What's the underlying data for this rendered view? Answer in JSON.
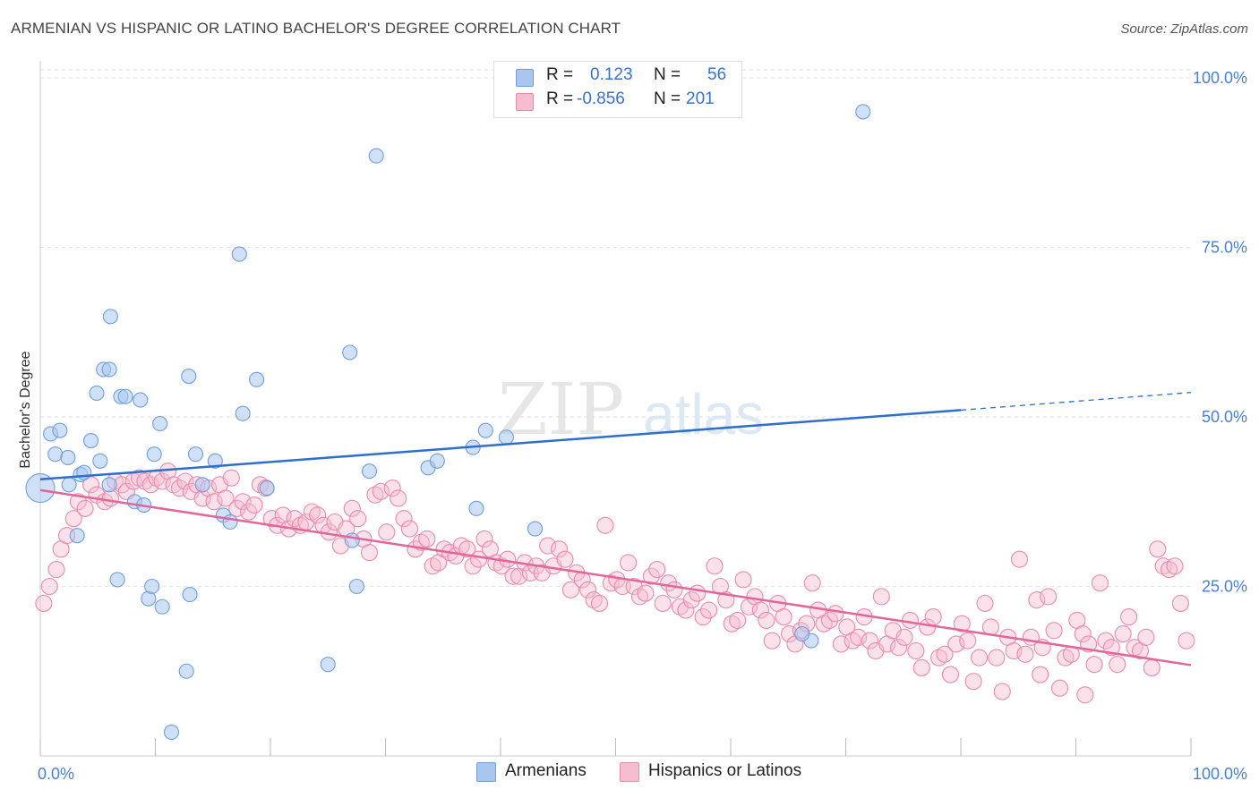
{
  "title": "ARMENIAN VS HISPANIC OR LATINO BACHELOR'S DEGREE CORRELATION CHART",
  "source": "Source: ZipAtlas.com",
  "watermark": "ZIPatlas",
  "legend": {
    "rows": [
      {
        "r_label": "R =",
        "r_value": "0.123",
        "n_label": "N =",
        "n_value": "56"
      },
      {
        "r_label": "R =",
        "r_value": "-0.856",
        "n_label": "N =",
        "n_value": "201"
      }
    ]
  },
  "bottom_legend": [
    "Armenians",
    "Hispanics or Latinos"
  ],
  "colors": {
    "armenian_fill": "#a9c6ee",
    "armenian_stroke": "#6e9fdc",
    "armenian_line": "#2f6fcc",
    "hispanic_fill": "#f6bcd0",
    "hispanic_stroke": "#e98aac",
    "hispanic_line": "#e0679a",
    "axis_text": "#4a7fd0"
  },
  "chart_data": {
    "type": "scatter",
    "xlabel": "",
    "ylabel": "Bachelor's Degree",
    "xlim": [
      0,
      100
    ],
    "ylim": [
      0,
      100
    ],
    "x_tick_labels": [
      "0.0%",
      "100.0%"
    ],
    "y_tick_labels": [
      "25.0%",
      "50.0%",
      "75.0%",
      "100.0%"
    ],
    "y_ticks": [
      25,
      50,
      75,
      100
    ],
    "grid": true,
    "legend_position": "top-center",
    "series": [
      {
        "name": "Armenians",
        "r": 0.123,
        "n": 56,
        "trend": {
          "x0": 0,
          "y0": 40.8,
          "x1": 80,
          "y1": 51.0,
          "dashed_to_x": 100,
          "dashed_to_y": 53.6
        },
        "points": [
          [
            0.0,
            39.5
          ],
          [
            0.9,
            47.5
          ],
          [
            1.3,
            44.5
          ],
          [
            1.7,
            48.0
          ],
          [
            2.4,
            44.0
          ],
          [
            2.5,
            40.0
          ],
          [
            3.5,
            41.5
          ],
          [
            3.2,
            32.5
          ],
          [
            3.8,
            41.8
          ],
          [
            4.4,
            46.5
          ],
          [
            4.9,
            53.5
          ],
          [
            5.2,
            43.5
          ],
          [
            5.5,
            57.0
          ],
          [
            6.0,
            40.0
          ],
          [
            6.0,
            57.0
          ],
          [
            6.1,
            64.8
          ],
          [
            6.7,
            26.0
          ],
          [
            7.0,
            53.0
          ],
          [
            7.4,
            53.0
          ],
          [
            8.2,
            37.5
          ],
          [
            8.7,
            52.5
          ],
          [
            9.0,
            37.0
          ],
          [
            9.4,
            23.2
          ],
          [
            9.7,
            25.0
          ],
          [
            9.9,
            44.5
          ],
          [
            10.4,
            49.0
          ],
          [
            10.6,
            22.0
          ],
          [
            11.4,
            3.5
          ],
          [
            12.7,
            12.5
          ],
          [
            12.9,
            56.0
          ],
          [
            13.0,
            23.8
          ],
          [
            13.5,
            44.5
          ],
          [
            14.1,
            40.0
          ],
          [
            15.9,
            35.5
          ],
          [
            16.5,
            34.5
          ],
          [
            17.3,
            74.0
          ],
          [
            17.6,
            50.5
          ],
          [
            18.8,
            55.5
          ],
          [
            19.7,
            39.5
          ],
          [
            25.0,
            13.5
          ],
          [
            26.9,
            59.5
          ],
          [
            27.1,
            31.8
          ],
          [
            27.5,
            25.0
          ],
          [
            28.6,
            42.0
          ],
          [
            29.2,
            88.5
          ],
          [
            33.7,
            42.5
          ],
          [
            34.5,
            43.5
          ],
          [
            37.6,
            45.5
          ],
          [
            37.9,
            36.5
          ],
          [
            38.7,
            48.0
          ],
          [
            40.5,
            47.0
          ],
          [
            43.0,
            33.5
          ],
          [
            71.5,
            95.0
          ],
          [
            67.0,
            17.0
          ],
          [
            66.2,
            18.0
          ],
          [
            15.2,
            43.5
          ]
        ]
      },
      {
        "name": "Hispanics or Latinos",
        "r": -0.856,
        "n": 201,
        "trend": {
          "x0": 0,
          "y0": 39.2,
          "x1": 100,
          "y1": 13.4
        },
        "points": [
          [
            0.3,
            22.5
          ],
          [
            0.8,
            25.0
          ],
          [
            1.4,
            27.5
          ],
          [
            1.8,
            30.5
          ],
          [
            2.3,
            32.5
          ],
          [
            2.9,
            35.0
          ],
          [
            3.3,
            37.5
          ],
          [
            3.9,
            36.5
          ],
          [
            4.4,
            40.0
          ],
          [
            4.9,
            38.5
          ],
          [
            5.6,
            37.5
          ],
          [
            6.1,
            38.0
          ],
          [
            6.5,
            40.5
          ],
          [
            7.1,
            40.0
          ],
          [
            7.5,
            39.0
          ],
          [
            8.1,
            40.5
          ],
          [
            8.6,
            41.0
          ],
          [
            9.1,
            40.5
          ],
          [
            9.6,
            40.0
          ],
          [
            10.1,
            41.0
          ],
          [
            10.6,
            40.5
          ],
          [
            11.1,
            42.0
          ],
          [
            11.6,
            40.0
          ],
          [
            12.1,
            39.5
          ],
          [
            12.6,
            40.5
          ],
          [
            13.1,
            39.0
          ],
          [
            13.6,
            40.0
          ],
          [
            14.1,
            38.0
          ],
          [
            14.6,
            39.5
          ],
          [
            15.1,
            37.5
          ],
          [
            15.6,
            40.0
          ],
          [
            16.1,
            38.0
          ],
          [
            16.6,
            41.0
          ],
          [
            17.1,
            36.5
          ],
          [
            17.6,
            37.5
          ],
          [
            18.1,
            36.0
          ],
          [
            18.6,
            37.0
          ],
          [
            19.1,
            40.0
          ],
          [
            19.6,
            39.5
          ],
          [
            20.1,
            35.0
          ],
          [
            20.6,
            34.0
          ],
          [
            21.1,
            35.5
          ],
          [
            21.6,
            33.5
          ],
          [
            22.1,
            35.0
          ],
          [
            22.6,
            34.0
          ],
          [
            23.1,
            34.5
          ],
          [
            23.6,
            36.0
          ],
          [
            24.1,
            35.5
          ],
          [
            24.6,
            34.0
          ],
          [
            25.1,
            33.0
          ],
          [
            25.6,
            34.5
          ],
          [
            26.1,
            31.0
          ],
          [
            26.6,
            33.5
          ],
          [
            27.1,
            36.5
          ],
          [
            27.6,
            35.0
          ],
          [
            28.1,
            32.0
          ],
          [
            28.6,
            30.0
          ],
          [
            29.1,
            38.5
          ],
          [
            29.6,
            39.0
          ],
          [
            30.1,
            33.0
          ],
          [
            30.6,
            39.5
          ],
          [
            31.1,
            38.0
          ],
          [
            31.6,
            35.0
          ],
          [
            32.1,
            33.5
          ],
          [
            32.6,
            30.5
          ],
          [
            33.1,
            31.5
          ],
          [
            33.6,
            32.0
          ],
          [
            34.1,
            28.0
          ],
          [
            34.6,
            28.5
          ],
          [
            35.1,
            30.5
          ],
          [
            35.6,
            30.0
          ],
          [
            36.1,
            29.5
          ],
          [
            36.6,
            31.0
          ],
          [
            37.1,
            30.5
          ],
          [
            37.6,
            28.0
          ],
          [
            38.1,
            29.0
          ],
          [
            38.6,
            32.0
          ],
          [
            39.1,
            30.5
          ],
          [
            39.6,
            28.5
          ],
          [
            40.1,
            28.0
          ],
          [
            40.6,
            29.0
          ],
          [
            41.1,
            26.5
          ],
          [
            41.6,
            26.5
          ],
          [
            42.1,
            28.5
          ],
          [
            42.6,
            27.0
          ],
          [
            43.1,
            28.0
          ],
          [
            43.6,
            27.0
          ],
          [
            44.1,
            31.0
          ],
          [
            44.6,
            28.0
          ],
          [
            45.1,
            30.5
          ],
          [
            45.6,
            29.0
          ],
          [
            46.1,
            24.5
          ],
          [
            46.6,
            27.0
          ],
          [
            47.1,
            26.0
          ],
          [
            47.6,
            24.5
          ],
          [
            48.1,
            23.0
          ],
          [
            48.6,
            22.5
          ],
          [
            49.1,
            34.0
          ],
          [
            49.6,
            25.5
          ],
          [
            50.1,
            26.0
          ],
          [
            50.6,
            25.0
          ],
          [
            51.1,
            28.5
          ],
          [
            51.6,
            25.0
          ],
          [
            52.1,
            23.5
          ],
          [
            52.6,
            24.0
          ],
          [
            53.1,
            26.5
          ],
          [
            53.6,
            27.5
          ],
          [
            54.1,
            22.5
          ],
          [
            54.6,
            25.5
          ],
          [
            55.1,
            24.5
          ],
          [
            55.6,
            22.0
          ],
          [
            56.1,
            21.5
          ],
          [
            56.6,
            23.0
          ],
          [
            57.1,
            24.0
          ],
          [
            57.6,
            20.5
          ],
          [
            58.1,
            21.5
          ],
          [
            58.6,
            28.0
          ],
          [
            59.1,
            25.0
          ],
          [
            59.6,
            23.0
          ],
          [
            60.1,
            19.5
          ],
          [
            60.6,
            20.0
          ],
          [
            61.1,
            26.0
          ],
          [
            61.6,
            22.0
          ],
          [
            62.1,
            23.5
          ],
          [
            62.6,
            21.5
          ],
          [
            63.1,
            20.0
          ],
          [
            63.6,
            17.0
          ],
          [
            64.1,
            22.5
          ],
          [
            64.6,
            20.5
          ],
          [
            65.1,
            18.0
          ],
          [
            65.6,
            16.5
          ],
          [
            66.1,
            18.5
          ],
          [
            66.6,
            19.5
          ],
          [
            67.1,
            25.5
          ],
          [
            67.6,
            21.5
          ],
          [
            68.1,
            19.5
          ],
          [
            68.6,
            20.0
          ],
          [
            69.1,
            21.0
          ],
          [
            69.6,
            16.5
          ],
          [
            70.1,
            19.0
          ],
          [
            70.6,
            17.0
          ],
          [
            71.1,
            17.5
          ],
          [
            71.6,
            20.5
          ],
          [
            72.1,
            17.0
          ],
          [
            72.6,
            15.5
          ],
          [
            73.1,
            23.5
          ],
          [
            73.6,
            16.5
          ],
          [
            74.1,
            18.5
          ],
          [
            74.6,
            16.0
          ],
          [
            75.1,
            17.5
          ],
          [
            75.6,
            20.0
          ],
          [
            76.1,
            15.5
          ],
          [
            76.6,
            13.0
          ],
          [
            77.1,
            19.0
          ],
          [
            77.6,
            20.5
          ],
          [
            78.1,
            14.5
          ],
          [
            78.6,
            15.0
          ],
          [
            79.1,
            12.0
          ],
          [
            79.6,
            16.5
          ],
          [
            80.1,
            19.5
          ],
          [
            80.6,
            17.0
          ],
          [
            81.1,
            11.0
          ],
          [
            81.6,
            14.5
          ],
          [
            82.1,
            22.5
          ],
          [
            82.6,
            19.0
          ],
          [
            83.1,
            14.5
          ],
          [
            83.6,
            9.5
          ],
          [
            84.1,
            17.5
          ],
          [
            84.6,
            15.5
          ],
          [
            85.1,
            29.0
          ],
          [
            85.6,
            15.0
          ],
          [
            86.1,
            17.5
          ],
          [
            86.6,
            23.0
          ],
          [
            87.1,
            16.0
          ],
          [
            87.6,
            23.5
          ],
          [
            88.1,
            18.5
          ],
          [
            88.6,
            10.0
          ],
          [
            89.1,
            14.5
          ],
          [
            89.6,
            15.0
          ],
          [
            90.1,
            20.0
          ],
          [
            90.6,
            18.0
          ],
          [
            91.1,
            16.5
          ],
          [
            91.6,
            13.5
          ],
          [
            92.1,
            25.5
          ],
          [
            92.6,
            17.0
          ],
          [
            93.1,
            16.0
          ],
          [
            93.6,
            13.5
          ],
          [
            94.1,
            18.0
          ],
          [
            94.6,
            20.5
          ],
          [
            95.1,
            16.0
          ],
          [
            95.6,
            15.5
          ],
          [
            96.1,
            17.5
          ],
          [
            96.6,
            13.0
          ],
          [
            97.1,
            30.5
          ],
          [
            97.6,
            28.0
          ],
          [
            98.1,
            27.5
          ],
          [
            98.6,
            28.0
          ],
          [
            99.1,
            22.5
          ],
          [
            99.6,
            17.0
          ],
          [
            90.8,
            9.0
          ],
          [
            86.9,
            12.0
          ]
        ]
      }
    ]
  }
}
